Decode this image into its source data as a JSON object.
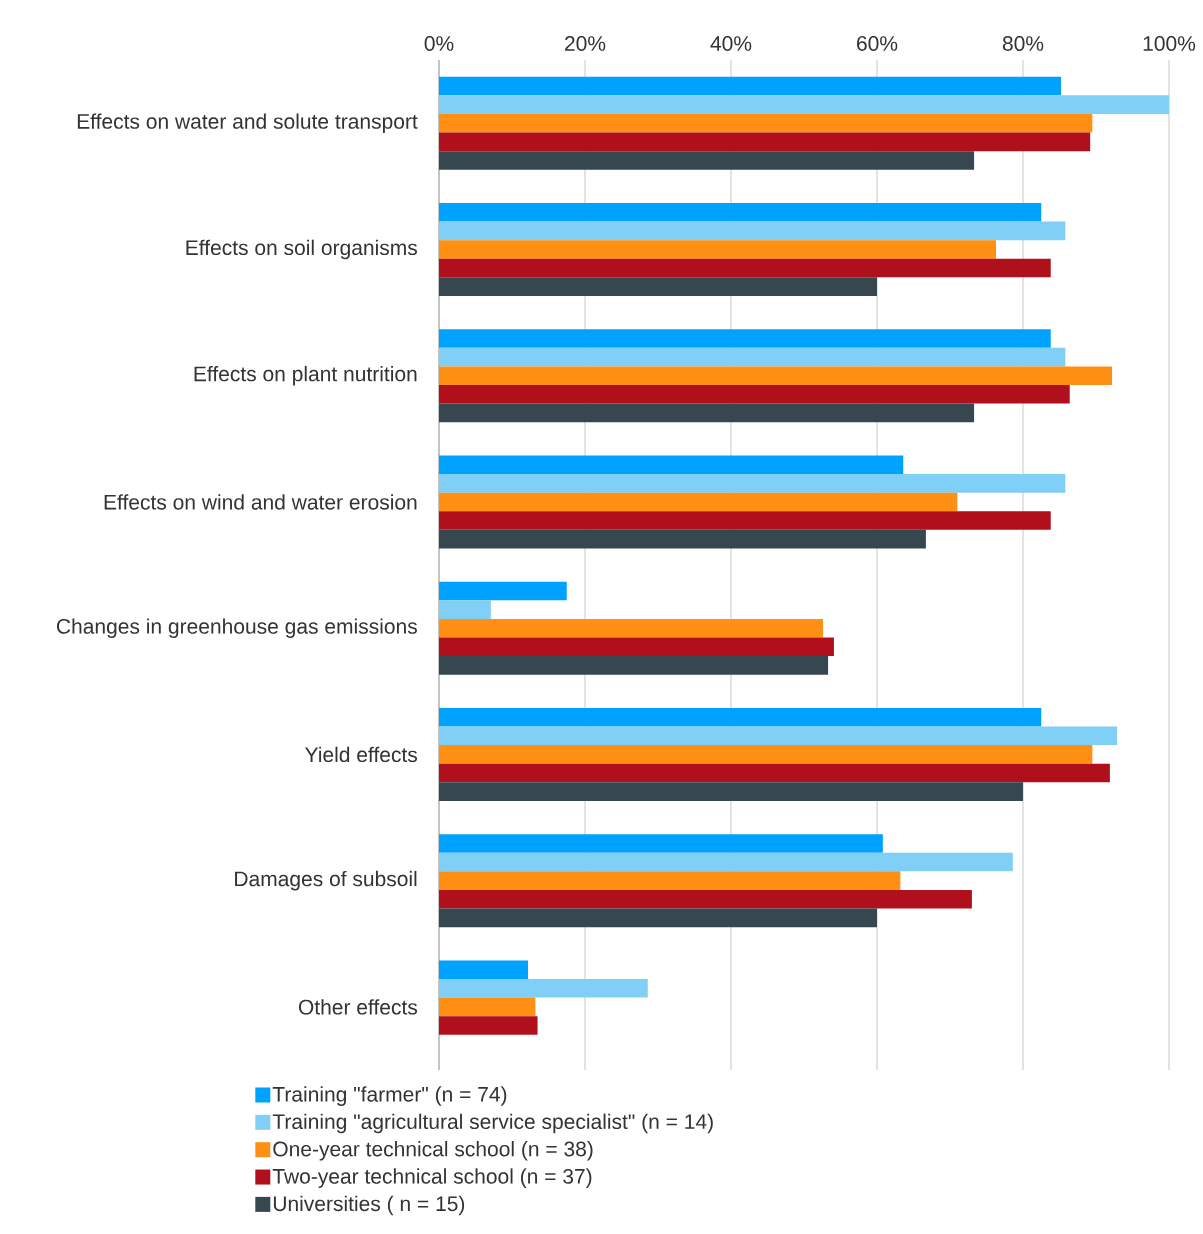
{
  "chart_data": {
    "type": "bar",
    "orientation": "horizontal",
    "categories": [
      "Effects on water and solute transport",
      "Effects on soil organisms",
      "Effects on plant nutrition",
      "Effects on wind and water erosion",
      "Changes in greenhouse gas emissions",
      "Yield effects",
      "Damages of subsoil",
      "Other effects"
    ],
    "series": [
      {
        "name": "Training \"farmer\" (n = 74)",
        "color": "#00a2ff",
        "values": [
          85.2,
          82.5,
          83.8,
          63.6,
          17.5,
          82.5,
          60.8,
          12.2
        ]
      },
      {
        "name": "Training \"agricultural service specialist\" (n = 14)",
        "color": "#7fcff7",
        "values": [
          100,
          85.8,
          85.8,
          85.8,
          7.1,
          92.9,
          78.6,
          28.6
        ]
      },
      {
        "name": "One-year technical school (n = 38)",
        "color": "#ff9014",
        "values": [
          89.5,
          76.3,
          92.2,
          71.0,
          52.6,
          89.5,
          63.2,
          13.2
        ]
      },
      {
        "name": "Two-year technical school (n = 37)",
        "color": "#b0101c",
        "values": [
          89.2,
          83.8,
          86.4,
          83.8,
          54.1,
          91.9,
          73.0,
          13.5
        ]
      },
      {
        "name": "Universities ( n = 15)",
        "color": "#37474f",
        "values": [
          73.3,
          60.0,
          73.3,
          66.7,
          53.3,
          80.0,
          60.0,
          0
        ]
      }
    ],
    "xlim": [
      0,
      100
    ],
    "xticks": [
      {
        "value": 0,
        "label": "0%"
      },
      {
        "value": 20,
        "label": "20%"
      },
      {
        "value": 40,
        "label": "40%"
      },
      {
        "value": 60,
        "label": "60%"
      },
      {
        "value": 80,
        "label": "80%"
      },
      {
        "value": 100,
        "label": "100%"
      }
    ],
    "grid": "x",
    "legend": "bottom"
  }
}
